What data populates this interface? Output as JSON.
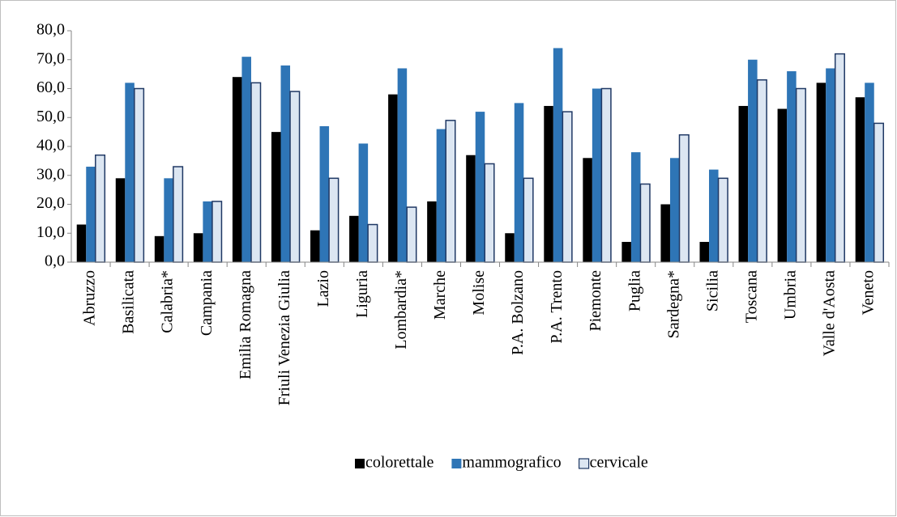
{
  "chart_data": {
    "type": "bar",
    "categories": [
      "Abruzzo",
      "Basilicata",
      "Calabria*",
      "Campania",
      "Emilia Romagna",
      "Friuli Venezia Giulia",
      "Lazio",
      "Liguria",
      "Lombardia*",
      "Marche",
      "Molise",
      "P.A. Bolzano",
      "P.A. Trento",
      "Piemonte",
      "Puglia",
      "Sardegna*",
      "Sicilia",
      "Toscana",
      "Umbria",
      "Valle d'Aosta",
      "Veneto"
    ],
    "series": [
      {
        "name": "colorettale",
        "color": "#000000",
        "values": [
          13,
          29,
          9,
          10,
          64,
          45,
          11,
          16,
          58,
          21,
          37,
          10,
          54,
          36,
          7,
          20,
          7,
          54,
          53,
          62,
          57
        ]
      },
      {
        "name": "mammografico",
        "color": "#2e75b6",
        "values": [
          33,
          62,
          29,
          21,
          71,
          68,
          47,
          41,
          67,
          46,
          52,
          55,
          74,
          60,
          38,
          36,
          32,
          70,
          66,
          67,
          62
        ]
      },
      {
        "name": "cervicale",
        "color": "#dce6f2",
        "values": [
          37,
          60,
          33,
          21,
          62,
          59,
          29,
          13,
          19,
          49,
          34,
          29,
          52,
          60,
          27,
          44,
          29,
          63,
          60,
          72,
          48
        ]
      }
    ],
    "ylim": [
      0,
      80
    ],
    "yticks": [
      {
        "value": 0,
        "label": "0,0"
      },
      {
        "value": 10,
        "label": "10,0"
      },
      {
        "value": 20,
        "label": "20,0"
      },
      {
        "value": 30,
        "label": "30,0"
      },
      {
        "value": 40,
        "label": "40,0"
      },
      {
        "value": 50,
        "label": "50,0"
      },
      {
        "value": 60,
        "label": "60,0"
      },
      {
        "value": 70,
        "label": "70,0"
      },
      {
        "value": 80,
        "label": "80,0"
      }
    ],
    "grid": false,
    "legend": "bottom"
  }
}
